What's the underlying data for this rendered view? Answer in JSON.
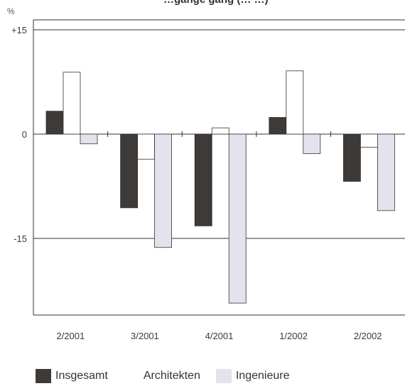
{
  "chart_data": {
    "type": "bar",
    "title": "…gänge gang (… …)",
    "unit": "%",
    "categories": [
      "2/2001",
      "3/2001",
      "4/2001",
      "1/2002",
      "2/2002"
    ],
    "series": [
      {
        "name": "Insgesamt",
        "color": "#3d3a38",
        "values": [
          3.3,
          -10.6,
          -13.2,
          2.4,
          -6.8
        ]
      },
      {
        "name": "Architekten",
        "color": "#ffffff",
        "values": [
          8.9,
          -3.6,
          0.9,
          9.1,
          -1.9
        ]
      },
      {
        "name": "Ingenieure",
        "color": "#e3e3ee",
        "values": [
          -1.4,
          -16.3,
          -24.3,
          -2.8,
          -11.0
        ]
      }
    ],
    "yticks": [
      {
        "value": 15,
        "label": "+15"
      },
      {
        "value": 0,
        "label": "0"
      },
      {
        "value": -15,
        "label": "-15"
      }
    ],
    "ylim": [
      -26,
      16.5
    ],
    "grid": "horizontal at ±15",
    "legend": "bottom"
  }
}
